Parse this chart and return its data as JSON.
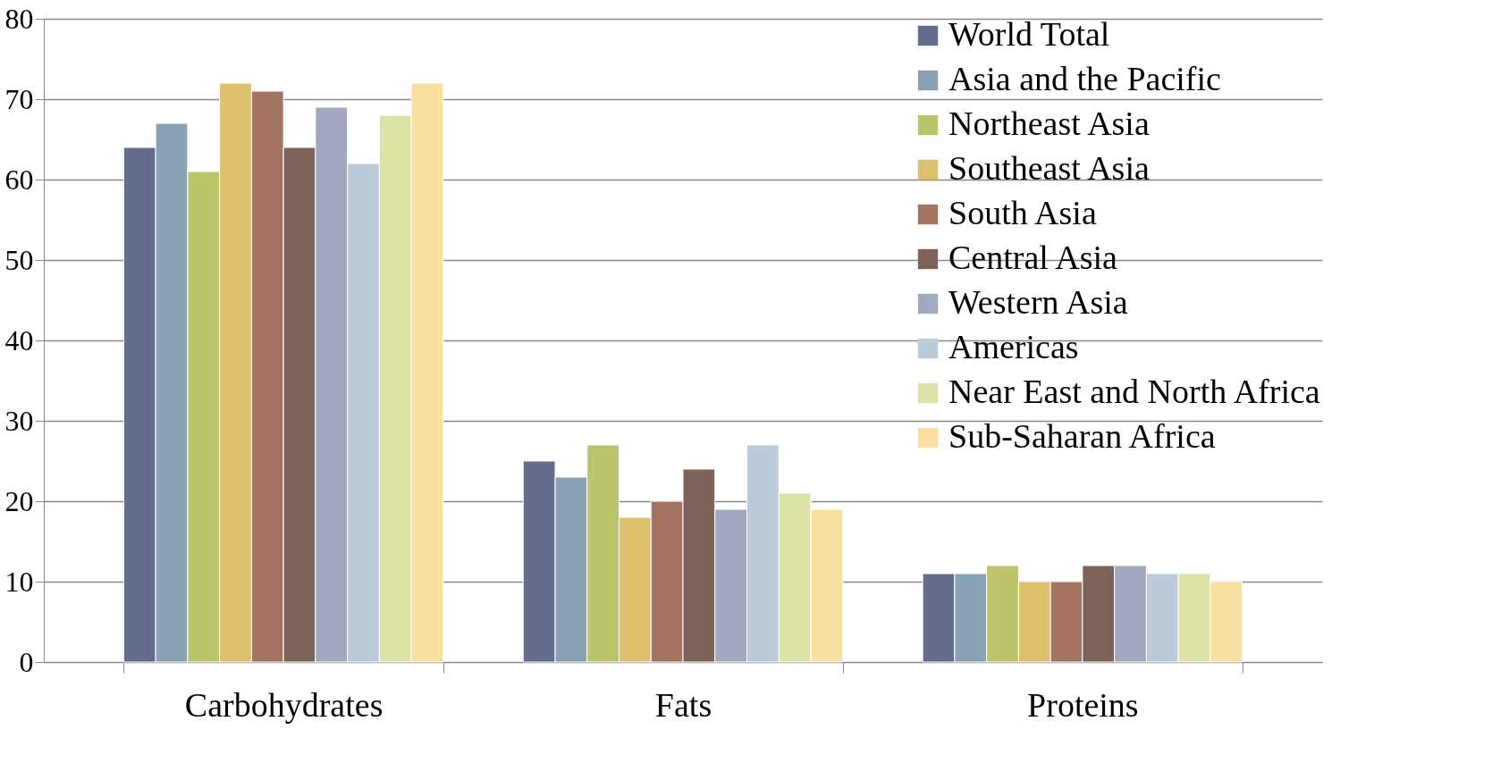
{
  "chart_data": {
    "type": "bar",
    "categories": [
      "Carbohydrates",
      "Fats",
      "Proteins"
    ],
    "series": [
      {
        "name": "World Total",
        "color": "#656d8f",
        "values": [
          64,
          25,
          11
        ]
      },
      {
        "name": "Asia and the Pacific",
        "color": "#8aa2b6",
        "values": [
          67,
          23,
          11
        ]
      },
      {
        "name": "Northeast Asia",
        "color": "#bbc36b",
        "values": [
          61,
          27,
          12
        ]
      },
      {
        "name": "Southeast Asia",
        "color": "#dcc06b",
        "values": [
          72,
          18,
          10
        ]
      },
      {
        "name": "South Asia",
        "color": "#a37462",
        "values": [
          71,
          20,
          10
        ]
      },
      {
        "name": "Central Asia",
        "color": "#7d625a",
        "values": [
          64,
          24,
          12
        ]
      },
      {
        "name": "Western Asia",
        "color": "#a3a7bf",
        "values": [
          69,
          19,
          12
        ]
      },
      {
        "name": "Americas",
        "color": "#bccbd9",
        "values": [
          62,
          27,
          11
        ]
      },
      {
        "name": "Near East and North Africa",
        "color": "#dde3a7",
        "values": [
          68,
          21,
          11
        ]
      },
      {
        "name": "Sub-Saharan Africa",
        "color": "#fae0a0",
        "values": [
          72,
          19,
          10
        ]
      }
    ],
    "ylim": [
      0,
      80
    ],
    "yticks": [
      0,
      10,
      20,
      30,
      40,
      50,
      60,
      70,
      80
    ],
    "grid": "y",
    "legend": "top right"
  }
}
